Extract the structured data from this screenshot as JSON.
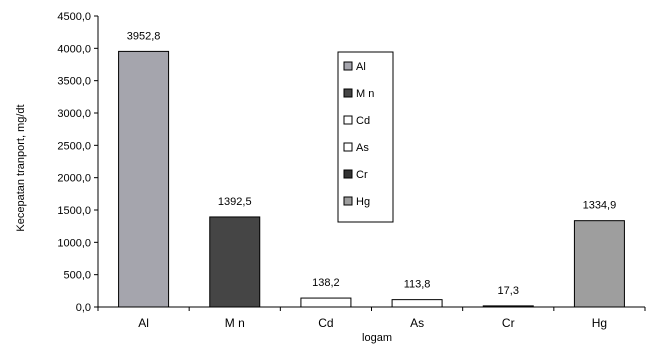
{
  "chart_data": {
    "type": "bar",
    "categories": [
      "Al",
      "Mn",
      "Cd",
      "As",
      "Cr",
      "Hg"
    ],
    "values": [
      3952.8,
      1392.5,
      138.2,
      113.8,
      17.3,
      1334.9
    ],
    "data_labels": [
      "3952,8",
      "1392,5",
      "138,2",
      "113,8",
      "17,3",
      "1334,9"
    ],
    "category_labels": [
      "Al",
      "M n",
      "Cd",
      "As",
      "Cr",
      "Hg"
    ],
    "xlabel": "logam",
    "ylabel": "Kecepatan tranport, mg/dt",
    "ylim": [
      0,
      4500
    ],
    "y_ticks": [
      0,
      500,
      1000,
      1500,
      2000,
      2500,
      3000,
      3500,
      4000,
      4500
    ],
    "y_tick_labels": [
      "0,0",
      "500,0",
      "1000,0",
      "1500,0",
      "2000,0",
      "2500,0",
      "3000,0",
      "3500,0",
      "4000,0",
      "4500,0"
    ],
    "grid": false,
    "legend": {
      "placement": "center",
      "entries": [
        "Al",
        "M n",
        "Cd",
        "As",
        "Cr",
        "Hg"
      ]
    },
    "colors": [
      "#a5a5ad",
      "#454545",
      "#ffffff",
      "#ffffff",
      "#333333",
      "#9e9e9e"
    ]
  }
}
